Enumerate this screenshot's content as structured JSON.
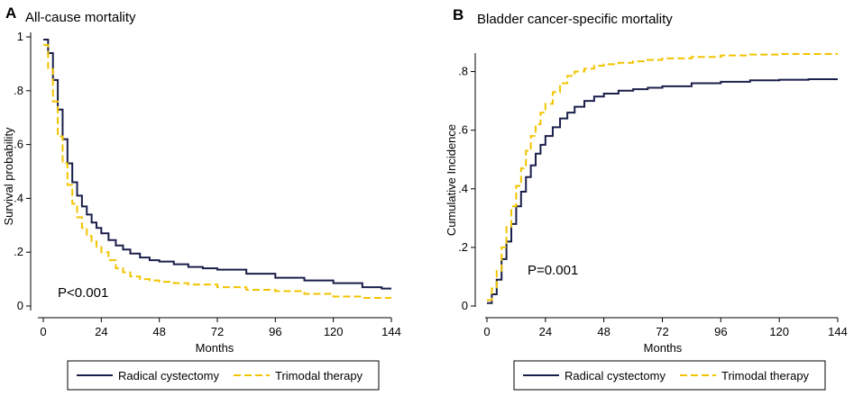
{
  "chart_data": [
    {
      "type": "line",
      "panel": "A",
      "title": "All-cause mortality",
      "xlabel": "Months",
      "ylabel": "Survival probability",
      "xlim": [
        0,
        144
      ],
      "ylim": [
        0,
        1
      ],
      "x_ticks": [
        0,
        24,
        48,
        72,
        96,
        120,
        144
      ],
      "x_tick_labels": [
        "0",
        "24",
        "48",
        "72",
        "96",
        "120",
        "144"
      ],
      "y_ticks": [
        0,
        0.2,
        0.4,
        0.6,
        0.8,
        1
      ],
      "y_tick_labels": [
        "0",
        ".2",
        ".4",
        ".6",
        ".8",
        "1"
      ],
      "annotation": "P<0.001",
      "legend_position": "bottom",
      "series": [
        {
          "name": "Radical cystectomy",
          "color": "#1a1f4a",
          "style": "solid",
          "x": [
            0,
            2,
            4,
            6,
            8,
            10,
            12,
            14,
            16,
            18,
            20,
            22,
            24,
            27,
            30,
            33,
            36,
            40,
            44,
            48,
            54,
            60,
            66,
            72,
            84,
            96,
            108,
            120,
            132,
            140,
            144
          ],
          "y": [
            0.99,
            0.94,
            0.84,
            0.73,
            0.62,
            0.53,
            0.46,
            0.41,
            0.37,
            0.34,
            0.31,
            0.29,
            0.27,
            0.245,
            0.225,
            0.21,
            0.195,
            0.18,
            0.17,
            0.165,
            0.155,
            0.145,
            0.14,
            0.135,
            0.12,
            0.105,
            0.095,
            0.085,
            0.07,
            0.065,
            0.065
          ]
        },
        {
          "name": "Trimodal therapy",
          "color": "#f2c400",
          "style": "dashed",
          "x": [
            0,
            2,
            4,
            6,
            8,
            10,
            12,
            14,
            16,
            18,
            20,
            22,
            24,
            27,
            30,
            33,
            36,
            40,
            44,
            48,
            54,
            60,
            72,
            84,
            96,
            108,
            120,
            132,
            140,
            144
          ],
          "y": [
            0.97,
            0.88,
            0.76,
            0.63,
            0.53,
            0.45,
            0.38,
            0.33,
            0.29,
            0.26,
            0.24,
            0.22,
            0.2,
            0.17,
            0.14,
            0.125,
            0.11,
            0.1,
            0.095,
            0.09,
            0.085,
            0.08,
            0.07,
            0.06,
            0.055,
            0.045,
            0.035,
            0.03,
            0.03,
            0.03
          ]
        }
      ]
    },
    {
      "type": "line",
      "panel": "B",
      "title": "Bladder cancer-specific mortality",
      "xlabel": "Months",
      "ylabel": "Cumulative Incidence",
      "xlim": [
        0,
        144
      ],
      "ylim": [
        0,
        0.86
      ],
      "x_ticks": [
        0,
        24,
        48,
        72,
        96,
        120,
        144
      ],
      "x_tick_labels": [
        "0",
        "24",
        "48",
        "72",
        "96",
        "120",
        "144"
      ],
      "y_ticks": [
        0,
        0.2,
        0.4,
        0.6,
        0.8
      ],
      "y_tick_labels": [
        "0",
        ".2",
        ".4",
        ".6",
        ".8"
      ],
      "annotation": "P=0.001",
      "legend_position": "bottom",
      "series": [
        {
          "name": "Radical cystectomy",
          "color": "#1a1f4a",
          "style": "solid",
          "x": [
            0,
            2,
            4,
            6,
            8,
            10,
            12,
            14,
            16,
            18,
            20,
            22,
            24,
            27,
            30,
            33,
            36,
            40,
            44,
            48,
            54,
            60,
            66,
            72,
            84,
            96,
            108,
            120,
            132,
            144
          ],
          "y": [
            0.01,
            0.04,
            0.09,
            0.16,
            0.22,
            0.28,
            0.34,
            0.39,
            0.44,
            0.48,
            0.52,
            0.55,
            0.58,
            0.61,
            0.64,
            0.66,
            0.68,
            0.7,
            0.715,
            0.725,
            0.735,
            0.74,
            0.745,
            0.75,
            0.76,
            0.765,
            0.77,
            0.772,
            0.774,
            0.774
          ]
        },
        {
          "name": "Trimodal therapy",
          "color": "#f2c400",
          "style": "dashed",
          "x": [
            0,
            2,
            4,
            6,
            8,
            10,
            12,
            14,
            16,
            18,
            20,
            22,
            24,
            27,
            30,
            33,
            36,
            40,
            44,
            48,
            54,
            60,
            66,
            72,
            84,
            96,
            108,
            120,
            132,
            144
          ],
          "y": [
            0.02,
            0.06,
            0.12,
            0.2,
            0.27,
            0.34,
            0.41,
            0.47,
            0.53,
            0.58,
            0.62,
            0.66,
            0.69,
            0.73,
            0.76,
            0.785,
            0.8,
            0.81,
            0.82,
            0.825,
            0.83,
            0.835,
            0.84,
            0.845,
            0.85,
            0.855,
            0.858,
            0.86,
            0.86,
            0.86
          ]
        }
      ]
    }
  ]
}
